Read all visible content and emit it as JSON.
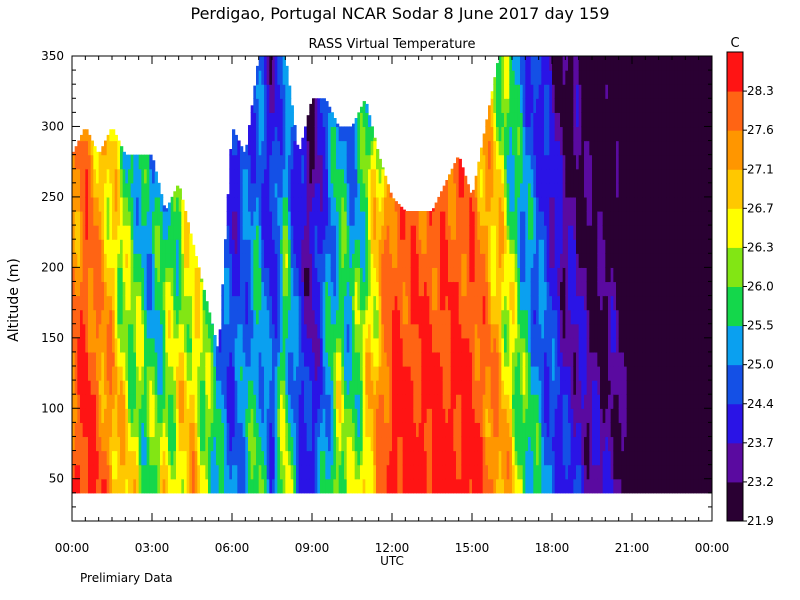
{
  "chart_data": {
    "type": "heatmap",
    "title": "Perdigao, Portugal   NCAR Sodar   8 June 2017   day 159",
    "subtitle": "RASS Virtual Temperature",
    "xlabel": "UTC",
    "ylabel": "Altitude (m)",
    "footnote": "Prelimiary Data",
    "colorbar_unit": "C",
    "xlim": [
      0,
      24
    ],
    "ylim": [
      20,
      350
    ],
    "data_ylim": [
      40,
      350
    ],
    "x_ticks": [
      0,
      3,
      6,
      9,
      12,
      15,
      18,
      21,
      24
    ],
    "x_tick_labels": [
      "00:00",
      "03:00",
      "06:00",
      "09:00",
      "12:00",
      "15:00",
      "18:00",
      "21:00",
      "00:00"
    ],
    "y_ticks": [
      50,
      100,
      150,
      200,
      250,
      300,
      350
    ],
    "y_tick_labels": [
      "50",
      "100",
      "150",
      "200",
      "250",
      "300",
      "350"
    ],
    "colorbar_labels": [
      "21.9",
      "23.2",
      "23.7",
      "24.4",
      "25.0",
      "25.5",
      "26.0",
      "26.3",
      "26.7",
      "27.1",
      "27.6",
      "28.3"
    ],
    "colorbar_colors": [
      "#2a0033",
      "#5a0aa0",
      "#2a14e6",
      "#1450e6",
      "#0aa0f0",
      "#14d74b",
      "#82e614",
      "#ffff00",
      "#ffc800",
      "#ff9600",
      "#ff6414",
      "#ff1414"
    ],
    "top_altitude": {
      "hours": [
        0,
        0.5,
        1,
        1.5,
        2,
        2.5,
        3,
        3.5,
        4,
        4.5,
        5,
        5.5,
        6,
        6.5,
        7,
        7.5,
        8,
        8.5,
        9,
        9.5,
        10,
        10.5,
        11,
        11.5,
        12,
        12.5,
        13,
        13.5,
        14,
        14.5,
        15,
        15.5,
        16,
        16.5,
        17,
        17.5,
        18,
        18.5,
        19,
        19.5,
        20,
        20.5,
        21,
        21.5,
        22,
        22.5,
        23,
        23.5,
        24
      ],
      "altitude_m": [
        280,
        300,
        280,
        300,
        280,
        280,
        280,
        240,
        260,
        220,
        180,
        140,
        300,
        280,
        350,
        350,
        350,
        280,
        320,
        320,
        300,
        300,
        320,
        280,
        250,
        240,
        240,
        240,
        260,
        280,
        250,
        300,
        350,
        350,
        350,
        350,
        350,
        350,
        350,
        350,
        350,
        350,
        350,
        350,
        350,
        350,
        350,
        350,
        350
      ]
    },
    "temperature_profile": {
      "hours": [
        0,
        0.5,
        1,
        1.5,
        2,
        2.5,
        3,
        3.5,
        4,
        4.5,
        5,
        5.5,
        6,
        6.5,
        7,
        7.5,
        8,
        8.5,
        9,
        9.5,
        10,
        10.5,
        11,
        11.5,
        12,
        12.5,
        13,
        13.5,
        14,
        14.5,
        15,
        15.5,
        16,
        16.5,
        17,
        17.5,
        18,
        18.5,
        19,
        19.5,
        20,
        20.5,
        21,
        21.5,
        22,
        22.5,
        23,
        23.5,
        24
      ],
      "temperature_c": [
        27.6,
        28.3,
        27.6,
        27.1,
        26.3,
        26.0,
        25.5,
        26.0,
        26.3,
        26.7,
        26.0,
        25.0,
        24.4,
        25.0,
        25.5,
        24.4,
        26.0,
        24.4,
        23.7,
        25.0,
        26.0,
        25.5,
        26.3,
        27.1,
        28.3,
        28.3,
        28.3,
        28.3,
        28.3,
        28.3,
        28.3,
        27.6,
        27.1,
        26.3,
        25.5,
        25.0,
        24.4,
        23.7,
        23.7,
        23.2,
        23.2,
        23.2,
        21.9,
        21.9,
        21.9,
        21.9,
        21.9,
        21.9,
        21.9
      ]
    }
  }
}
